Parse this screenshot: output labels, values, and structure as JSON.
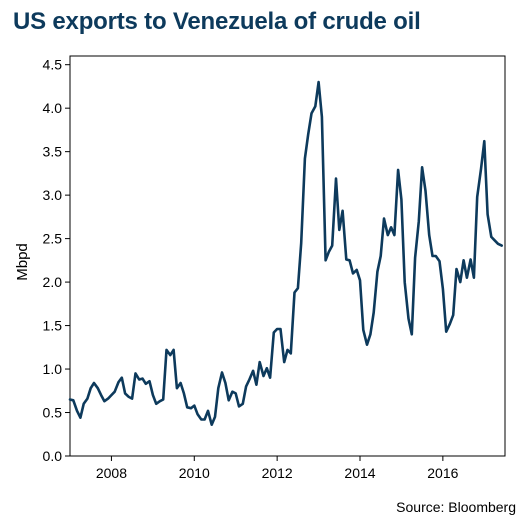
{
  "chart_data": {
    "type": "line",
    "title": "US exports to Venezuela of crude oil",
    "ylabel": "Mbpd",
    "xlabel": "",
    "source": "Source: Bloomberg",
    "ylim": [
      0,
      4.6
    ],
    "y_ticks": [
      "0.0",
      "0.5",
      "1.0",
      "1.5",
      "2.0",
      "2.5",
      "3.0",
      "3.5",
      "4.0",
      "4.5"
    ],
    "x_ticks": [
      "2008",
      "2010",
      "2012",
      "2014",
      "2016"
    ],
    "xlim": [
      2007.0,
      2017.5
    ],
    "grid": false,
    "line_color": "#0d3a5c",
    "series": [
      {
        "x": [
          2007.0,
          2007.08,
          2007.17,
          2007.25,
          2007.33,
          2007.42,
          2007.5,
          2007.58,
          2007.67,
          2007.75,
          2007.83,
          2007.92,
          2008.0,
          2008.08,
          2008.17,
          2008.25,
          2008.33,
          2008.42,
          2008.5,
          2008.58,
          2008.67,
          2008.75,
          2008.83,
          2008.92,
          2009.0,
          2009.08,
          2009.17,
          2009.25,
          2009.33,
          2009.42,
          2009.5,
          2009.58,
          2009.67,
          2009.75,
          2009.83,
          2009.92,
          2010.0,
          2010.08,
          2010.17,
          2010.25,
          2010.33,
          2010.42,
          2010.5,
          2010.58,
          2010.67,
          2010.75,
          2010.83,
          2010.92,
          2011.0,
          2011.08,
          2011.17,
          2011.25,
          2011.33,
          2011.42,
          2011.5,
          2011.58,
          2011.67,
          2011.75,
          2011.83,
          2011.92,
          2012.0,
          2012.08,
          2012.17,
          2012.25,
          2012.33,
          2012.42,
          2012.5,
          2012.58,
          2012.67,
          2012.75,
          2012.83,
          2012.92,
          2013.0,
          2013.08,
          2013.17,
          2013.25,
          2013.33,
          2013.42,
          2013.5,
          2013.58,
          2013.67,
          2013.75,
          2013.83,
          2013.92,
          2014.0,
          2014.08,
          2014.17,
          2014.25,
          2014.33,
          2014.42,
          2014.5,
          2014.58,
          2014.67,
          2014.75,
          2014.83,
          2014.92,
          2015.0,
          2015.08,
          2015.17,
          2015.25,
          2015.33,
          2015.42,
          2015.5,
          2015.58,
          2015.67,
          2015.75,
          2015.83,
          2015.92,
          2016.0,
          2016.08,
          2016.17,
          2016.25,
          2016.33,
          2016.42,
          2016.5,
          2016.58,
          2016.67,
          2016.75,
          2016.83,
          2016.92,
          2017.0,
          2017.08,
          2017.17,
          2017.25,
          2017.33,
          2017.42
        ],
        "y": [
          0.65,
          0.64,
          0.52,
          0.44,
          0.6,
          0.66,
          0.78,
          0.84,
          0.78,
          0.7,
          0.63,
          0.66,
          0.7,
          0.74,
          0.85,
          0.9,
          0.72,
          0.68,
          0.66,
          0.95,
          0.88,
          0.89,
          0.83,
          0.86,
          0.7,
          0.6,
          0.63,
          0.65,
          1.22,
          1.16,
          1.22,
          0.78,
          0.84,
          0.72,
          0.56,
          0.55,
          0.58,
          0.48,
          0.42,
          0.42,
          0.52,
          0.36,
          0.45,
          0.78,
          0.96,
          0.84,
          0.64,
          0.74,
          0.72,
          0.57,
          0.6,
          0.8,
          0.88,
          0.98,
          0.82,
          1.08,
          0.92,
          1.01,
          0.9,
          1.42,
          1.46,
          1.46,
          1.08,
          1.22,
          1.18,
          1.88,
          1.93,
          2.45,
          3.42,
          3.7,
          3.94,
          4.02,
          4.3,
          3.9,
          2.25,
          2.35,
          2.42,
          3.19,
          2.6,
          2.82,
          2.26,
          2.25,
          2.1,
          2.14,
          2.02,
          1.45,
          1.28,
          1.4,
          1.65,
          2.12,
          2.3,
          2.73,
          2.54,
          2.63,
          2.54,
          3.29,
          2.95,
          2.0,
          1.58,
          1.4,
          2.28,
          2.7,
          3.32,
          3.05,
          2.54,
          2.3,
          2.3,
          2.24,
          1.92,
          1.43,
          1.52,
          1.62,
          2.15,
          2.0,
          2.25,
          2.05,
          2.26,
          2.05,
          2.98,
          3.3,
          3.62,
          2.78,
          2.52,
          2.48,
          2.44,
          2.42
        ]
      }
    ]
  }
}
